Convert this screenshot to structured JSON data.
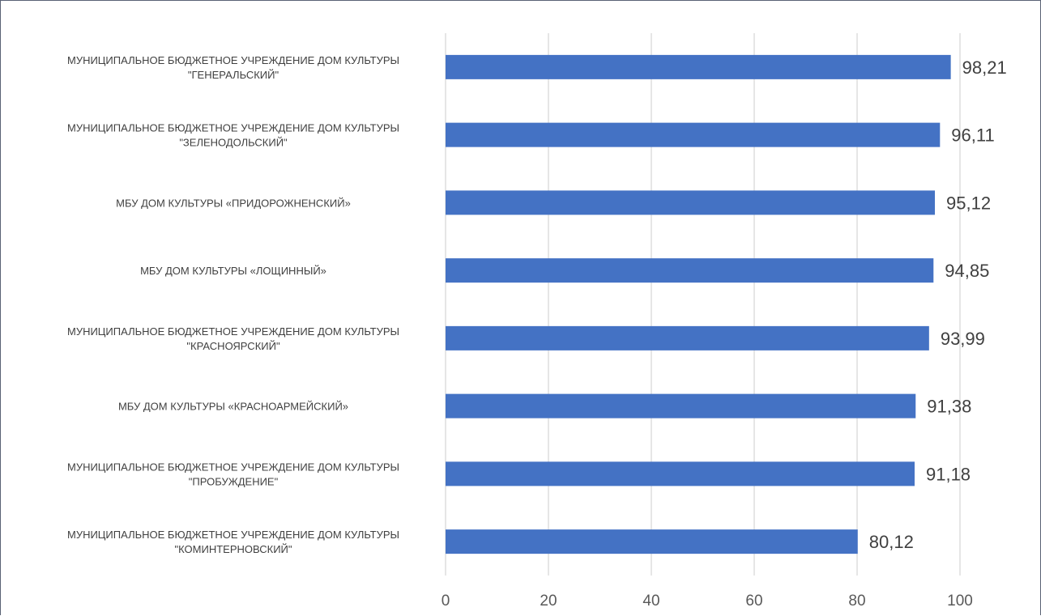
{
  "chart_data": {
    "type": "bar",
    "orientation": "horizontal",
    "categories": [
      [
        "МУНИЦИПАЛЬНОЕ БЮДЖЕТНОЕ УЧРЕЖДЕНИЕ ДОМ КУЛЬТУРЫ",
        "\"ГЕНЕРАЛЬСКИЙ\""
      ],
      [
        "МУНИЦИПАЛЬНОЕ БЮДЖЕТНОЕ УЧРЕЖДЕНИЕ ДОМ КУЛЬТУРЫ",
        "\"ЗЕЛЕНОДОЛЬСКИЙ\""
      ],
      [
        "МБУ ДОМ КУЛЬТУРЫ «ПРИДОРОЖНЕНСКИЙ»"
      ],
      [
        "МБУ ДОМ КУЛЬТУРЫ «ЛОЩИННЫЙ»"
      ],
      [
        "МУНИЦИПАЛЬНОЕ БЮДЖЕТНОЕ УЧРЕЖДЕНИЕ ДОМ КУЛЬТУРЫ",
        "\"КРАСНОЯРСКИЙ\""
      ],
      [
        "МБУ ДОМ КУЛЬТУРЫ «КРАСНОАРМЕЙСКИЙ»"
      ],
      [
        "МУНИЦИПАЛЬНОЕ БЮДЖЕТНОЕ УЧРЕЖДЕНИЕ ДОМ КУЛЬТУРЫ",
        "\"ПРОБУЖДЕНИЕ\""
      ],
      [
        "МУНИЦИПАЛЬНОЕ БЮДЖЕТНОЕ УЧРЕЖДЕНИЕ ДОМ КУЛЬТУРЫ",
        "\"КОМИНТЕРНОВСКИЙ\""
      ]
    ],
    "values": [
      98.21,
      96.11,
      95.12,
      94.85,
      93.99,
      91.38,
      91.18,
      80.12
    ],
    "value_labels": [
      "98,21",
      "96,11",
      "95,12",
      "94,85",
      "93,99",
      "91,38",
      "91,18",
      "80,12"
    ],
    "xlim": [
      0,
      100
    ],
    "xticks": [
      "0",
      "20",
      "40",
      "60",
      "80",
      "100"
    ],
    "grid": "vertical",
    "legend": "none",
    "bar_color": "#4472C4",
    "grid_color": "#D9D9D9"
  }
}
